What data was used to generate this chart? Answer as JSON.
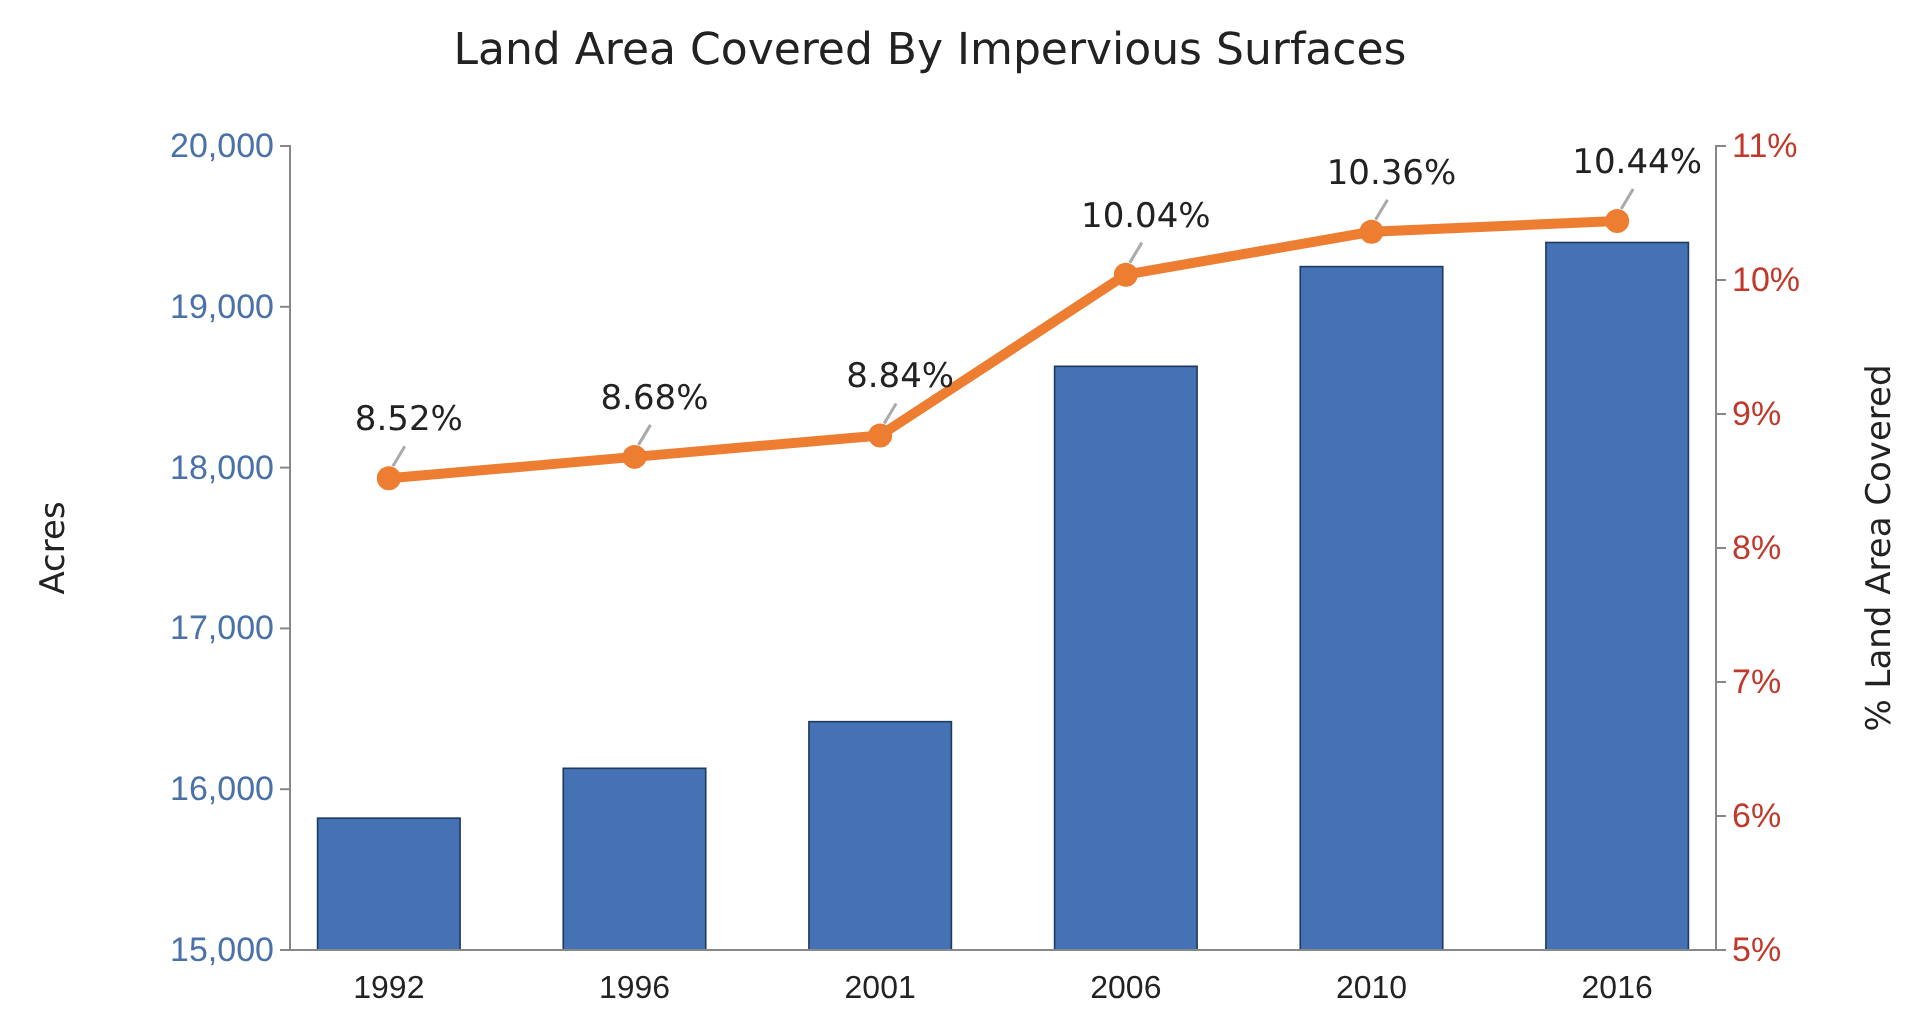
{
  "chart_data": {
    "type": "bar",
    "title": "Land Area Covered By Impervious Surfaces",
    "ylabel": "Acres",
    "y2label": "% Land Area Covered",
    "categories": [
      "1992",
      "1996",
      "2001",
      "2006",
      "2010",
      "2016"
    ],
    "series": [
      {
        "color": "#4472b4",
        "values": [
          15820,
          16130,
          16420,
          18630,
          19250,
          19400
        ]
      },
      {
        "type": "line",
        "axis": "y2",
        "color": "#ed7d31",
        "marker": "circle",
        "values": [
          8.52,
          8.68,
          8.84,
          10.04,
          10.36,
          10.44
        ],
        "value_labels": [
          "8.52%",
          "8.68%",
          "8.84%",
          "10.04%",
          "10.36%",
          "10.44%"
        ]
      }
    ],
    "ylim": [
      15000,
      20000
    ],
    "yticks": [
      {
        "value": 15000,
        "label": "15,000"
      },
      {
        "value": 16000,
        "label": "16,000"
      },
      {
        "value": 17000,
        "label": "17,000"
      },
      {
        "value": 18000,
        "label": "18,000"
      },
      {
        "value": 19000,
        "label": "19,000"
      },
      {
        "value": 20000,
        "label": "20,000"
      }
    ],
    "y2lim": [
      5,
      11
    ],
    "y2ticks": [
      {
        "value": 5,
        "label": "5%"
      },
      {
        "value": 6,
        "label": "6%"
      },
      {
        "value": 7,
        "label": "7%"
      },
      {
        "value": 8,
        "label": "8%"
      },
      {
        "value": 9,
        "label": "9%"
      },
      {
        "value": 10,
        "label": "10%"
      },
      {
        "value": 11,
        "label": "11%"
      }
    ],
    "grid": false
  }
}
